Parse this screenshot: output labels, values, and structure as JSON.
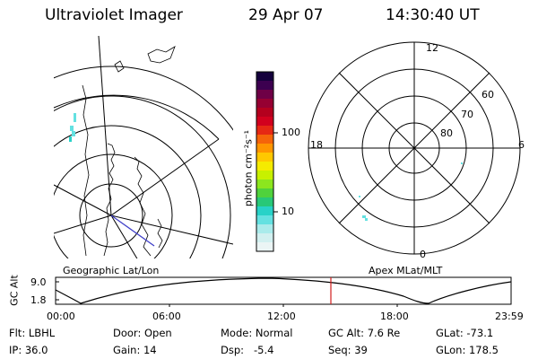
{
  "header": {
    "title": "Ultraviolet Imager",
    "date": "29 Apr 07",
    "time": "14:30:40 UT"
  },
  "colorbar": {
    "unit_label": "photon cm⁻²s⁻¹",
    "ticks": [
      "100",
      "10"
    ],
    "colors": [
      "#14003c",
      "#3c0050",
      "#6e0046",
      "#960032",
      "#b4001e",
      "#d2001e",
      "#e62814",
      "#f5640a",
      "#ff9600",
      "#ffc800",
      "#f5eb00",
      "#c8f000",
      "#8ce61e",
      "#50d23c",
      "#28c878",
      "#28d2c8",
      "#64e1e1",
      "#aaebeb",
      "#d2f0f0",
      "#ebf5f5"
    ]
  },
  "left_panel": {
    "caption": "Geographic Lat/Lon"
  },
  "right_panel": {
    "caption": "Apex MLat/MLT",
    "mlt_labels": [
      "12",
      "18",
      "6",
      "0"
    ],
    "lat_labels": [
      "60",
      "70",
      "80"
    ]
  },
  "timeline": {
    "ylabel": "GC Alt",
    "yticks": [
      "9.0",
      "1.8"
    ],
    "xticks": [
      "00:00",
      "06:00",
      "12:00",
      "18:00",
      "23:59"
    ],
    "current_time_marker": "14:30:40"
  },
  "info": {
    "flt": "Flt: LBHL",
    "ip": "IP: 36.0",
    "door": "Door: Open",
    "gain": "Gain: 14",
    "mode": "Mode: Normal",
    "dsp": "Dsp:   -5.4",
    "gcalt": "GC Alt: 7.6 Re",
    "seq": "Seq: 39",
    "glat": "GLat: -73.1",
    "glon": "GLon: 178.5"
  }
}
